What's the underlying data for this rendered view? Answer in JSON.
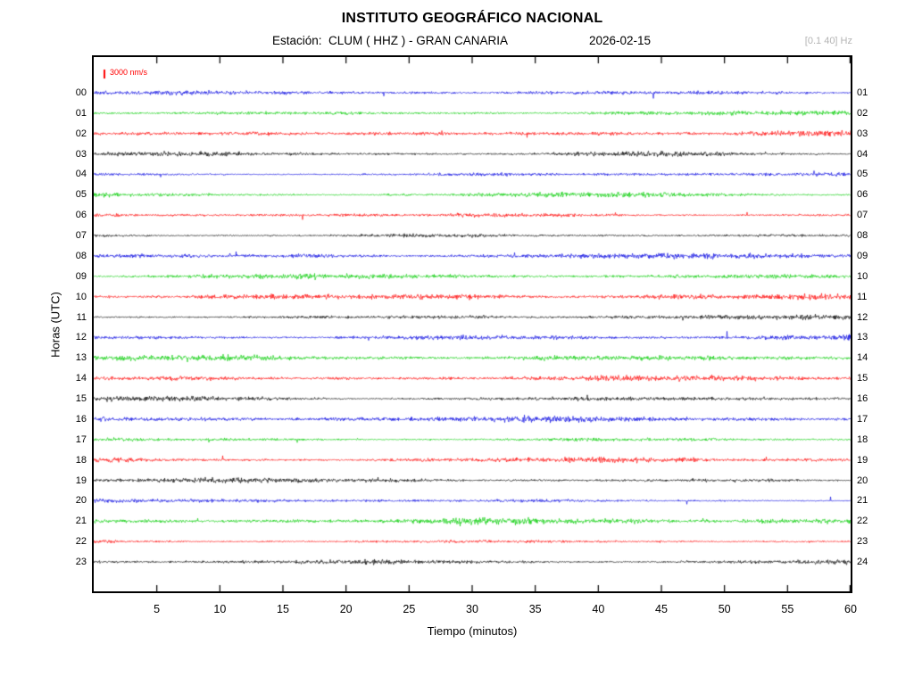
{
  "header": {
    "title": "INSTITUTO GEOGRÁFICO NACIONAL",
    "station_prefix": "Estación:",
    "station": "CLUM ( HHZ ) - GRAN CANARIA",
    "date": "2026-02-15",
    "filter": "[0.1 40] Hz"
  },
  "chart_data": {
    "type": "line",
    "subtype": "helicorder-seismogram",
    "title": "INSTITUTO GEOGRÁFICO NACIONAL",
    "xlabel": "Tiempo (minutos)",
    "ylabel": "Horas (UTC)",
    "x_range": [
      0,
      60
    ],
    "x_ticks": [
      5,
      10,
      15,
      20,
      25,
      30,
      35,
      40,
      45,
      50,
      55,
      60
    ],
    "scale_label": "3000 nm/s",
    "scale_value_nm_s": 3000,
    "scale_color": "#ff0000",
    "trace_color_cycle": [
      "#0000e0",
      "#00cc00",
      "#ff0000",
      "#000000"
    ],
    "grid": false,
    "legend_position": "none",
    "layout": {
      "row_offset": 40,
      "row_spacing": 22.87
    },
    "rows": [
      {
        "hour_left": "00",
        "hour_right": "01",
        "color": "#0000e0",
        "amp": 3.0,
        "seed": 7
      },
      {
        "hour_left": "01",
        "hour_right": "02",
        "color": "#00cc00",
        "amp": 3.4,
        "seed": 20
      },
      {
        "hour_left": "02",
        "hour_right": "03",
        "color": "#ff0000",
        "amp": 3.2,
        "seed": 33
      },
      {
        "hour_left": "03",
        "hour_right": "04",
        "color": "#000000",
        "amp": 2.8,
        "seed": 46
      },
      {
        "hour_left": "04",
        "hour_right": "05",
        "color": "#0000e0",
        "amp": 3.0,
        "seed": 59
      },
      {
        "hour_left": "05",
        "hour_right": "06",
        "color": "#00cc00",
        "amp": 3.6,
        "seed": 72
      },
      {
        "hour_left": "06",
        "hour_right": "07",
        "color": "#ff0000",
        "amp": 3.0,
        "seed": 85
      },
      {
        "hour_left": "07",
        "hour_right": "08",
        "color": "#000000",
        "amp": 3.0,
        "seed": 98
      },
      {
        "hour_left": "08",
        "hour_right": "09",
        "color": "#0000e0",
        "amp": 3.2,
        "seed": 111
      },
      {
        "hour_left": "09",
        "hour_right": "10",
        "color": "#00cc00",
        "amp": 2.8,
        "seed": 124
      },
      {
        "hour_left": "10",
        "hour_right": "11",
        "color": "#ff0000",
        "amp": 3.8,
        "seed": 137
      },
      {
        "hour_left": "11",
        "hour_right": "12",
        "color": "#000000",
        "amp": 3.0,
        "seed": 150
      },
      {
        "hour_left": "12",
        "hour_right": "13",
        "color": "#0000e0",
        "amp": 3.6,
        "seed": 163
      },
      {
        "hour_left": "13",
        "hour_right": "14",
        "color": "#00cc00",
        "amp": 3.4,
        "seed": 176
      },
      {
        "hour_left": "14",
        "hour_right": "15",
        "color": "#ff0000",
        "amp": 3.6,
        "seed": 189
      },
      {
        "hour_left": "15",
        "hour_right": "16",
        "color": "#000000",
        "amp": 3.0,
        "seed": 202
      },
      {
        "hour_left": "16",
        "hour_right": "17",
        "color": "#0000e0",
        "amp": 3.4,
        "seed": 215
      },
      {
        "hour_left": "17",
        "hour_right": "18",
        "color": "#00cc00",
        "amp": 3.0,
        "seed": 228
      },
      {
        "hour_left": "18",
        "hour_right": "19",
        "color": "#ff0000",
        "amp": 3.8,
        "seed": 241
      },
      {
        "hour_left": "19",
        "hour_right": "20",
        "color": "#000000",
        "amp": 2.8,
        "seed": 254
      },
      {
        "hour_left": "20",
        "hour_right": "21",
        "color": "#0000e0",
        "amp": 3.0,
        "seed": 267
      },
      {
        "hour_left": "21",
        "hour_right": "22",
        "color": "#00cc00",
        "amp": 3.8,
        "seed": 280
      },
      {
        "hour_left": "22",
        "hour_right": "23",
        "color": "#ff0000",
        "amp": 3.2,
        "seed": 293
      },
      {
        "hour_left": "23",
        "hour_right": "24",
        "color": "#000000",
        "amp": 3.0,
        "seed": 306
      }
    ]
  }
}
